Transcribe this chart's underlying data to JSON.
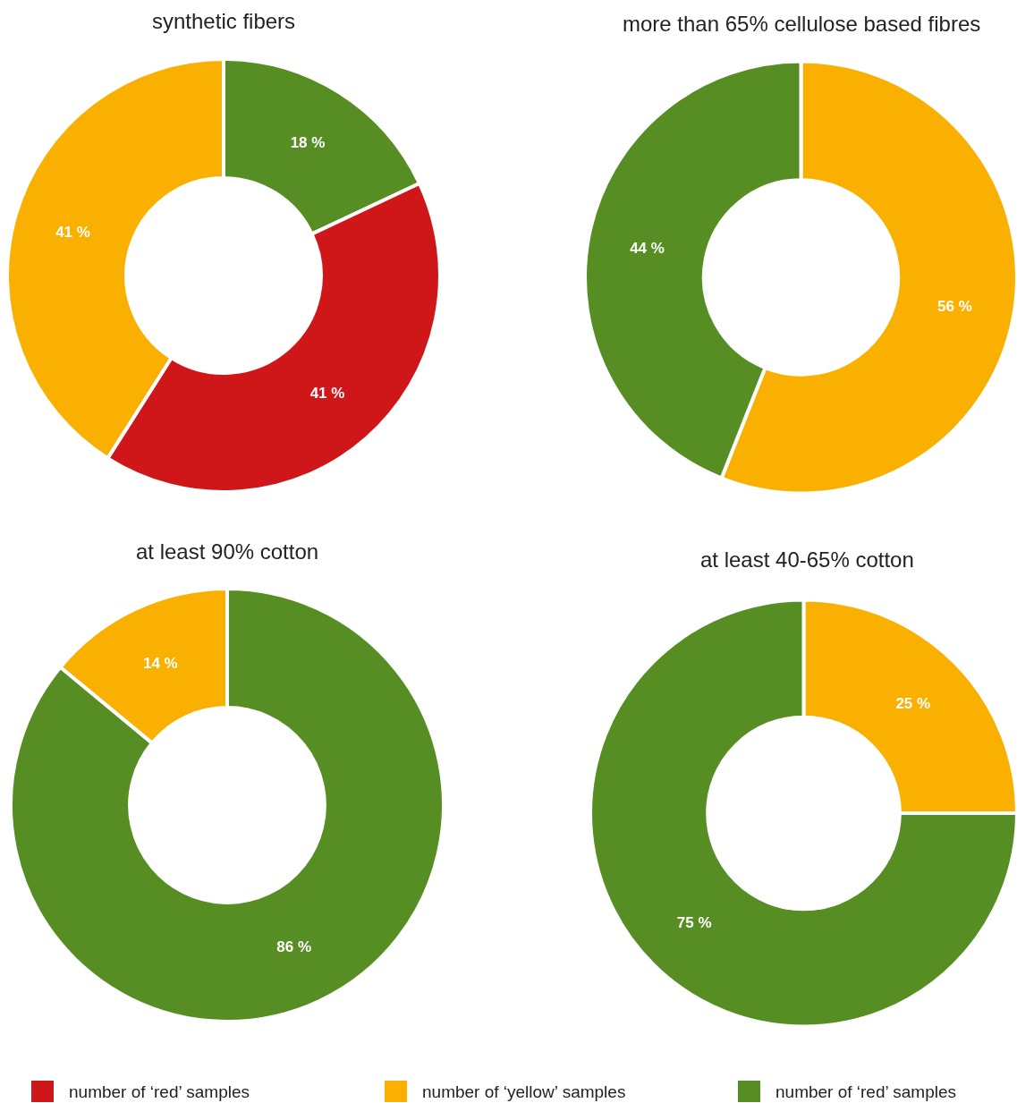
{
  "chart_data": [
    {
      "type": "donut",
      "title": "synthetic fibers",
      "categories": [
        "number of ‘red’ samples",
        "number of ‘red’ samples",
        "number of ‘yellow’ samples"
      ],
      "values": [
        18,
        41,
        41
      ],
      "value_labels": [
        "18 %",
        "41 %",
        "41 %"
      ],
      "colors": [
        "#568e23",
        "#cf1719",
        "#f9b000"
      ],
      "legend": "bottom"
    },
    {
      "type": "donut",
      "title": "more than 65% cellulose based fibres",
      "categories": [
        null,
        null
      ],
      "values": [
        56,
        44
      ],
      "value_labels": [
        "56 %",
        "44 %"
      ],
      "colors": [
        "#f9b000",
        "#568e23"
      ]
    },
    {
      "type": "donut",
      "title": "at least 90% cotton",
      "categories": [
        null,
        null
      ],
      "values": [
        86,
        14
      ],
      "value_labels": [
        "86 %",
        "14 %"
      ],
      "colors": [
        "#568e23",
        "#f9b000"
      ]
    },
    {
      "type": "donut",
      "title": "at least 40-65% cotton",
      "categories": [
        null,
        null
      ],
      "values": [
        25,
        75
      ],
      "value_labels": [
        "25 %",
        "75 %"
      ],
      "colors": [
        "#f9b000",
        "#568e23"
      ]
    }
  ]
}
